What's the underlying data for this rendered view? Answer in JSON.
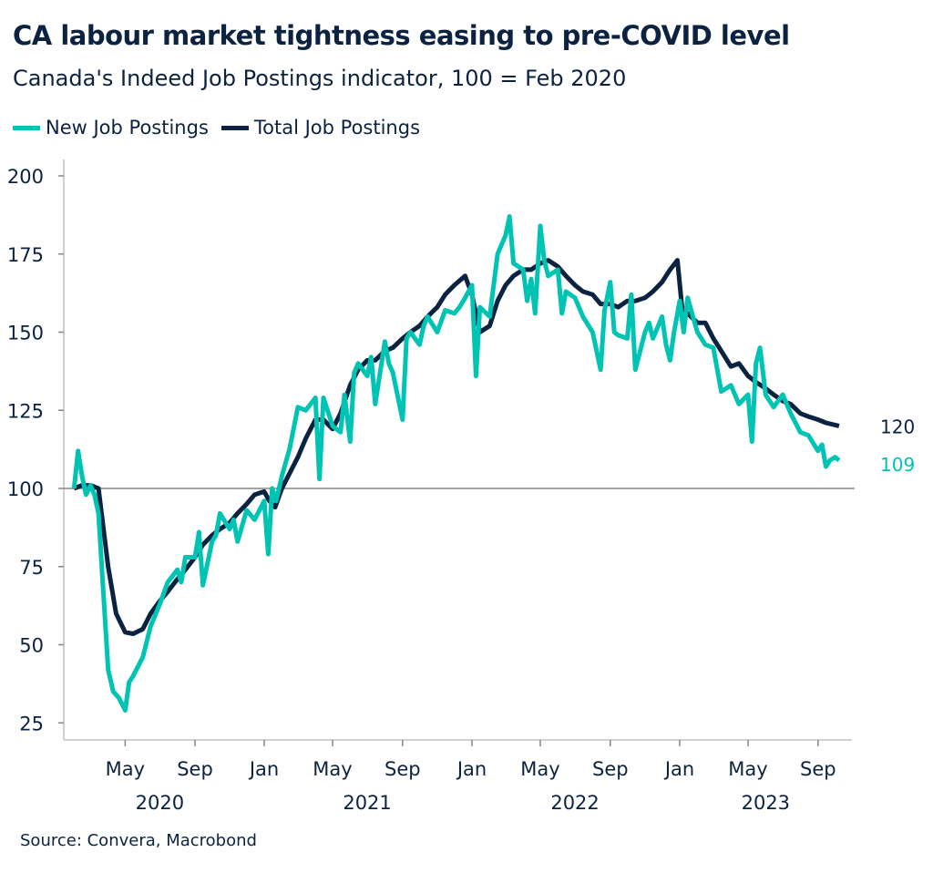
{
  "title": "CA labour market tightness easing to pre-COVID level",
  "subtitle": "Canada's Indeed Job Postings indicator, 100 = Feb 2020",
  "source": "Source: Convera, Macrobond",
  "colors": {
    "new": "#00c4b3",
    "total": "#0b2341",
    "baseline": "#888888"
  },
  "chart_data": {
    "type": "line",
    "title": "CA labour market tightness easing to pre-COVID level",
    "subtitle": "Canada's Indeed Job Postings indicator, 100 = Feb 2020",
    "ylim": [
      25,
      200
    ],
    "yticks": [
      "25",
      "50",
      "75",
      "100",
      "125",
      "150",
      "175",
      "200"
    ],
    "xlim": [
      "2020-02-01",
      "2023-10-15"
    ],
    "xticks": [
      {
        "date": "2020-05-01",
        "label": "May"
      },
      {
        "date": "2020-09-01",
        "label": "Sep"
      },
      {
        "date": "2021-01-01",
        "label": "Jan"
      },
      {
        "date": "2021-05-01",
        "label": "May"
      },
      {
        "date": "2021-09-01",
        "label": "Sep"
      },
      {
        "date": "2022-01-01",
        "label": "Jan"
      },
      {
        "date": "2022-05-01",
        "label": "May"
      },
      {
        "date": "2022-09-01",
        "label": "Sep"
      },
      {
        "date": "2023-01-01",
        "label": "Jan"
      },
      {
        "date": "2023-05-01",
        "label": "May"
      },
      {
        "date": "2023-09-01",
        "label": "Sep"
      }
    ],
    "years": [
      {
        "label": "2020",
        "date": "2020-07-01"
      },
      {
        "label": "2021",
        "date": "2021-07-01"
      },
      {
        "label": "2022",
        "date": "2022-07-01"
      },
      {
        "label": "2023",
        "date": "2023-06-01"
      }
    ],
    "reference_line": 100,
    "legend": "top-left",
    "grid": false,
    "series": [
      {
        "name": "New Job Postings",
        "end_label": "109",
        "points": [
          [
            "2020-02-01",
            100
          ],
          [
            "2020-02-08",
            112
          ],
          [
            "2020-02-15",
            104
          ],
          [
            "2020-02-22",
            98
          ],
          [
            "2020-03-01",
            101
          ],
          [
            "2020-03-08",
            98
          ],
          [
            "2020-03-15",
            92
          ],
          [
            "2020-04-01",
            42
          ],
          [
            "2020-04-10",
            35
          ],
          [
            "2020-04-20",
            33
          ],
          [
            "2020-05-01",
            29
          ],
          [
            "2020-05-08",
            38
          ],
          [
            "2020-05-15",
            40
          ],
          [
            "2020-06-01",
            46
          ],
          [
            "2020-06-15",
            56
          ],
          [
            "2020-07-01",
            63
          ],
          [
            "2020-07-15",
            70
          ],
          [
            "2020-08-01",
            74
          ],
          [
            "2020-08-08",
            70
          ],
          [
            "2020-08-15",
            78
          ],
          [
            "2020-09-01",
            78
          ],
          [
            "2020-09-08",
            86
          ],
          [
            "2020-09-15",
            69
          ],
          [
            "2020-10-01",
            83
          ],
          [
            "2020-10-08",
            85
          ],
          [
            "2020-10-15",
            92
          ],
          [
            "2020-11-01",
            87
          ],
          [
            "2020-11-08",
            90
          ],
          [
            "2020-11-15",
            83
          ],
          [
            "2020-12-01",
            93
          ],
          [
            "2020-12-15",
            90
          ],
          [
            "2021-01-01",
            96
          ],
          [
            "2021-01-08",
            79
          ],
          [
            "2021-01-15",
            100
          ],
          [
            "2021-01-22",
            96
          ],
          [
            "2021-02-01",
            104
          ],
          [
            "2021-02-15",
            113
          ],
          [
            "2021-03-01",
            126
          ],
          [
            "2021-03-15",
            125
          ],
          [
            "2021-04-01",
            129
          ],
          [
            "2021-04-08",
            103
          ],
          [
            "2021-04-15",
            129
          ],
          [
            "2021-05-01",
            120
          ],
          [
            "2021-05-15",
            118
          ],
          [
            "2021-05-22",
            130
          ],
          [
            "2021-06-01",
            115
          ],
          [
            "2021-06-08",
            137
          ],
          [
            "2021-06-15",
            140
          ],
          [
            "2021-07-01",
            136
          ],
          [
            "2021-07-08",
            142
          ],
          [
            "2021-07-15",
            127
          ],
          [
            "2021-08-01",
            147
          ],
          [
            "2021-08-08",
            140
          ],
          [
            "2021-08-15",
            137
          ],
          [
            "2021-09-01",
            122
          ],
          [
            "2021-09-08",
            148
          ],
          [
            "2021-09-15",
            150
          ],
          [
            "2021-10-01",
            146
          ],
          [
            "2021-10-08",
            152
          ],
          [
            "2021-10-15",
            155
          ],
          [
            "2021-11-01",
            150
          ],
          [
            "2021-11-15",
            157
          ],
          [
            "2021-12-01",
            156
          ],
          [
            "2021-12-10",
            158
          ],
          [
            "2021-12-20",
            161
          ],
          [
            "2022-01-01",
            165
          ],
          [
            "2022-01-08",
            136
          ],
          [
            "2022-01-15",
            158
          ],
          [
            "2022-02-01",
            155
          ],
          [
            "2022-02-15",
            175
          ],
          [
            "2022-03-01",
            181
          ],
          [
            "2022-03-08",
            187
          ],
          [
            "2022-03-15",
            172
          ],
          [
            "2022-04-01",
            170
          ],
          [
            "2022-04-08",
            160
          ],
          [
            "2022-04-15",
            167
          ],
          [
            "2022-04-22",
            156
          ],
          [
            "2022-05-01",
            184
          ],
          [
            "2022-05-08",
            173
          ],
          [
            "2022-05-15",
            168
          ],
          [
            "2022-06-01",
            170
          ],
          [
            "2022-06-08",
            156
          ],
          [
            "2022-06-15",
            163
          ],
          [
            "2022-07-01",
            161
          ],
          [
            "2022-07-15",
            155
          ],
          [
            "2022-08-01",
            150
          ],
          [
            "2022-08-15",
            138
          ],
          [
            "2022-08-22",
            157
          ],
          [
            "2022-09-01",
            166
          ],
          [
            "2022-09-08",
            150
          ],
          [
            "2022-09-15",
            149
          ],
          [
            "2022-10-01",
            148
          ],
          [
            "2022-10-08",
            162
          ],
          [
            "2022-10-15",
            138
          ],
          [
            "2022-11-01",
            150
          ],
          [
            "2022-11-08",
            153
          ],
          [
            "2022-11-15",
            148
          ],
          [
            "2022-12-01",
            155
          ],
          [
            "2022-12-08",
            146
          ],
          [
            "2022-12-15",
            141
          ],
          [
            "2022-12-22",
            150
          ],
          [
            "2023-01-01",
            160
          ],
          [
            "2023-01-08",
            150
          ],
          [
            "2023-01-15",
            161
          ],
          [
            "2023-02-01",
            150
          ],
          [
            "2023-02-15",
            146
          ],
          [
            "2023-03-01",
            145
          ],
          [
            "2023-03-15",
            131
          ],
          [
            "2023-04-01",
            133
          ],
          [
            "2023-04-15",
            127
          ],
          [
            "2023-05-01",
            130
          ],
          [
            "2023-05-08",
            115
          ],
          [
            "2023-05-15",
            140
          ],
          [
            "2023-05-22",
            145
          ],
          [
            "2023-06-01",
            130
          ],
          [
            "2023-06-15",
            126
          ],
          [
            "2023-07-01",
            130
          ],
          [
            "2023-07-15",
            124
          ],
          [
            "2023-08-01",
            118
          ],
          [
            "2023-08-15",
            117
          ],
          [
            "2023-09-01",
            112
          ],
          [
            "2023-09-08",
            114
          ],
          [
            "2023-09-15",
            107
          ],
          [
            "2023-09-22",
            109
          ],
          [
            "2023-10-01",
            110
          ],
          [
            "2023-10-08",
            109
          ]
        ]
      },
      {
        "name": "Total Job Postings",
        "end_label": "120",
        "points": [
          [
            "2020-02-01",
            100
          ],
          [
            "2020-02-15",
            101
          ],
          [
            "2020-03-01",
            101
          ],
          [
            "2020-03-15",
            100
          ],
          [
            "2020-04-01",
            75
          ],
          [
            "2020-04-15",
            60
          ],
          [
            "2020-05-01",
            54
          ],
          [
            "2020-05-15",
            53.5
          ],
          [
            "2020-06-01",
            55
          ],
          [
            "2020-06-15",
            60
          ],
          [
            "2020-07-01",
            64
          ],
          [
            "2020-07-15",
            67
          ],
          [
            "2020-08-01",
            71
          ],
          [
            "2020-08-15",
            74
          ],
          [
            "2020-09-01",
            78
          ],
          [
            "2020-09-15",
            82
          ],
          [
            "2020-10-01",
            85
          ],
          [
            "2020-10-15",
            87
          ],
          [
            "2020-11-01",
            89
          ],
          [
            "2020-11-15",
            92
          ],
          [
            "2020-12-01",
            95
          ],
          [
            "2020-12-15",
            98
          ],
          [
            "2021-01-01",
            99
          ],
          [
            "2021-01-10",
            96
          ],
          [
            "2021-01-20",
            94
          ],
          [
            "2021-02-01",
            100
          ],
          [
            "2021-02-15",
            105
          ],
          [
            "2021-03-01",
            110
          ],
          [
            "2021-03-15",
            116
          ],
          [
            "2021-04-01",
            122
          ],
          [
            "2021-04-15",
            122
          ],
          [
            "2021-05-01",
            119
          ],
          [
            "2021-05-15",
            124
          ],
          [
            "2021-06-01",
            133
          ],
          [
            "2021-06-15",
            138
          ],
          [
            "2021-07-01",
            141
          ],
          [
            "2021-07-15",
            141
          ],
          [
            "2021-08-01",
            144
          ],
          [
            "2021-08-15",
            145
          ],
          [
            "2021-09-01",
            148
          ],
          [
            "2021-09-15",
            150
          ],
          [
            "2021-10-01",
            152
          ],
          [
            "2021-10-15",
            155
          ],
          [
            "2021-11-01",
            158
          ],
          [
            "2021-11-15",
            162
          ],
          [
            "2021-12-01",
            165
          ],
          [
            "2021-12-20",
            168
          ],
          [
            "2022-01-01",
            162
          ],
          [
            "2022-01-15",
            150
          ],
          [
            "2022-02-01",
            152
          ],
          [
            "2022-02-15",
            160
          ],
          [
            "2022-03-01",
            165
          ],
          [
            "2022-03-15",
            168
          ],
          [
            "2022-04-01",
            170
          ],
          [
            "2022-04-15",
            170
          ],
          [
            "2022-05-01",
            172
          ],
          [
            "2022-05-15",
            173
          ],
          [
            "2022-06-01",
            171
          ],
          [
            "2022-06-15",
            168
          ],
          [
            "2022-07-01",
            165
          ],
          [
            "2022-07-15",
            163
          ],
          [
            "2022-08-01",
            162
          ],
          [
            "2022-08-15",
            159
          ],
          [
            "2022-09-01",
            159
          ],
          [
            "2022-09-15",
            158
          ],
          [
            "2022-10-01",
            160
          ],
          [
            "2022-10-15",
            160
          ],
          [
            "2022-11-01",
            161
          ],
          [
            "2022-11-15",
            163
          ],
          [
            "2022-12-01",
            166
          ],
          [
            "2022-12-15",
            170
          ],
          [
            "2022-12-28",
            173
          ],
          [
            "2023-01-05",
            158
          ],
          [
            "2023-01-15",
            156
          ],
          [
            "2023-02-01",
            153
          ],
          [
            "2023-02-15",
            153
          ],
          [
            "2023-03-01",
            148
          ],
          [
            "2023-03-15",
            144
          ],
          [
            "2023-04-01",
            139
          ],
          [
            "2023-04-15",
            140
          ],
          [
            "2023-05-01",
            136
          ],
          [
            "2023-05-15",
            134
          ],
          [
            "2023-06-01",
            132
          ],
          [
            "2023-06-15",
            130
          ],
          [
            "2023-07-01",
            128
          ],
          [
            "2023-07-15",
            127
          ],
          [
            "2023-08-01",
            124
          ],
          [
            "2023-08-15",
            123
          ],
          [
            "2023-09-01",
            122
          ],
          [
            "2023-09-15",
            121
          ],
          [
            "2023-10-08",
            120
          ]
        ]
      }
    ]
  }
}
